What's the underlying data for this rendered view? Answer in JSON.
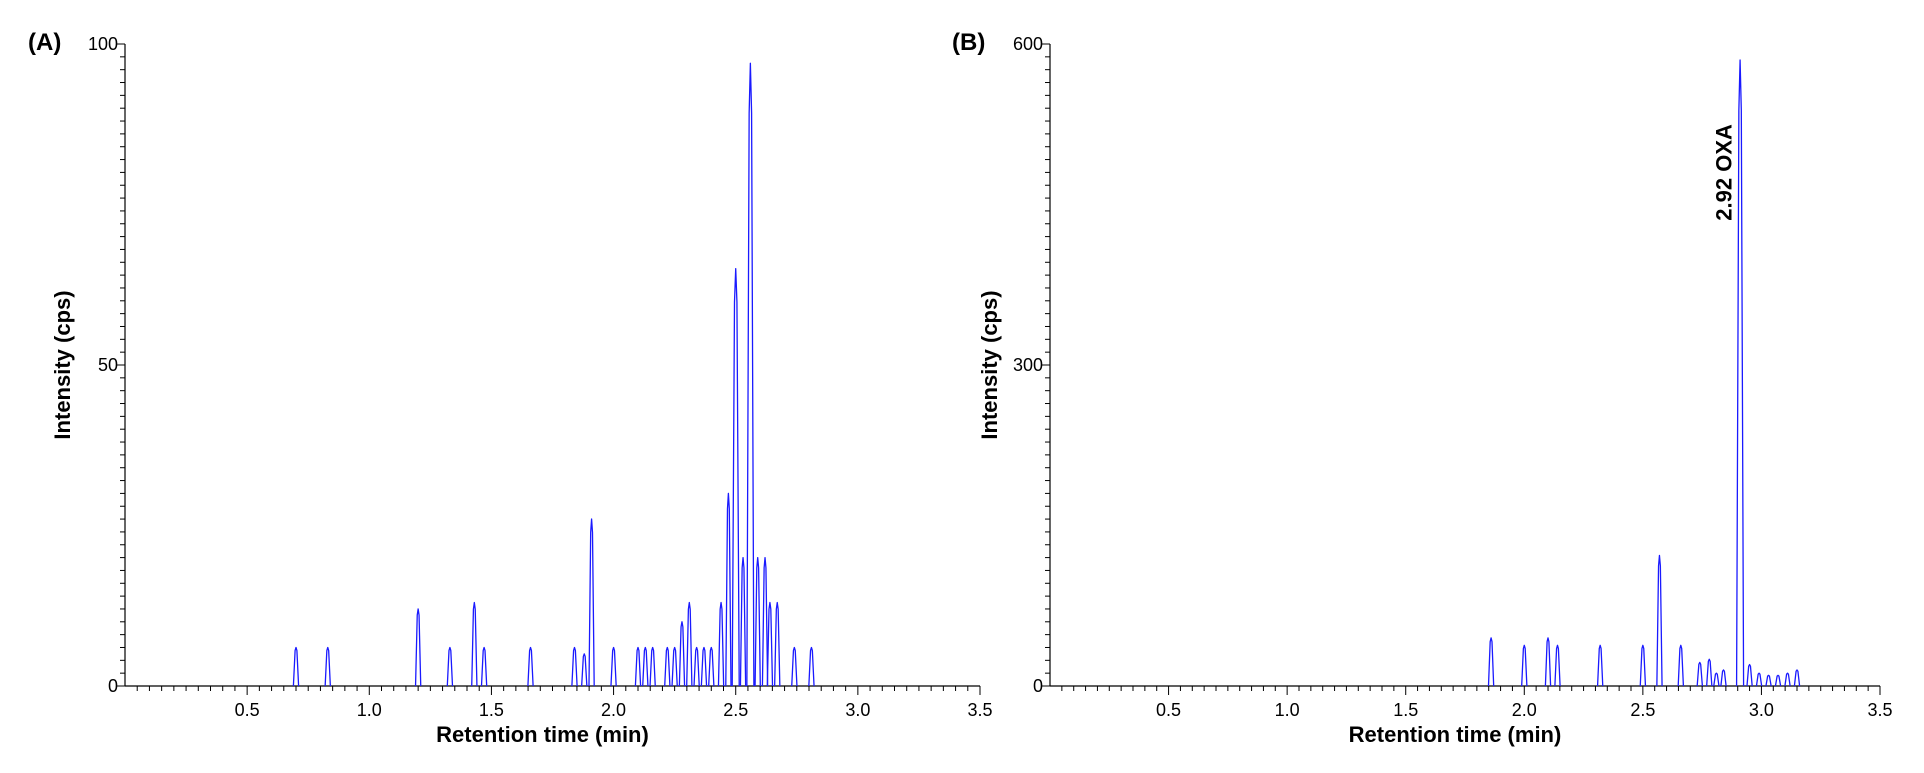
{
  "colors": {
    "trace": "#1a1aff",
    "axis": "#000000"
  },
  "chart_data": [
    {
      "type": "line",
      "panel_label": "(A)",
      "xlabel": "Retention time (min)",
      "ylabel": "Intensity (cps)",
      "xlim": [
        0,
        3.5
      ],
      "ylim": [
        0,
        100
      ],
      "x_ticks": [
        "0.5",
        "1.0",
        "1.5",
        "2.0",
        "2.5",
        "3.0",
        "3.5"
      ],
      "y_ticks": [
        "0",
        "50",
        "100"
      ],
      "grid": false,
      "annotations": [],
      "peaks": [
        {
          "x": 0.7,
          "y": 6
        },
        {
          "x": 0.83,
          "y": 6
        },
        {
          "x": 1.2,
          "y": 12
        },
        {
          "x": 1.33,
          "y": 6
        },
        {
          "x": 1.43,
          "y": 13
        },
        {
          "x": 1.47,
          "y": 6
        },
        {
          "x": 1.66,
          "y": 6
        },
        {
          "x": 1.84,
          "y": 6
        },
        {
          "x": 1.88,
          "y": 5
        },
        {
          "x": 1.91,
          "y": 26
        },
        {
          "x": 2.0,
          "y": 6
        },
        {
          "x": 2.1,
          "y": 6
        },
        {
          "x": 2.13,
          "y": 6
        },
        {
          "x": 2.16,
          "y": 6
        },
        {
          "x": 2.22,
          "y": 6
        },
        {
          "x": 2.25,
          "y": 6
        },
        {
          "x": 2.28,
          "y": 10
        },
        {
          "x": 2.31,
          "y": 13
        },
        {
          "x": 2.34,
          "y": 6
        },
        {
          "x": 2.37,
          "y": 6
        },
        {
          "x": 2.4,
          "y": 6
        },
        {
          "x": 2.44,
          "y": 13
        },
        {
          "x": 2.47,
          "y": 30
        },
        {
          "x": 2.5,
          "y": 65
        },
        {
          "x": 2.53,
          "y": 20
        },
        {
          "x": 2.56,
          "y": 97
        },
        {
          "x": 2.59,
          "y": 20
        },
        {
          "x": 2.62,
          "y": 20
        },
        {
          "x": 2.64,
          "y": 13
        },
        {
          "x": 2.67,
          "y": 13
        },
        {
          "x": 2.74,
          "y": 6
        },
        {
          "x": 2.81,
          "y": 6
        }
      ]
    },
    {
      "type": "line",
      "panel_label": "(B)",
      "xlabel": "Retention time (min)",
      "ylabel": "Intensity (cps)",
      "xlim": [
        0,
        3.5
      ],
      "ylim": [
        0,
        600
      ],
      "x_ticks": [
        "0.5",
        "1.0",
        "1.5",
        "2.0",
        "2.5",
        "3.0",
        "3.5"
      ],
      "y_ticks": [
        "0",
        "300",
        "600"
      ],
      "grid": false,
      "annotations": [
        {
          "text": "2.92  OXA",
          "x": 2.9,
          "y": 480
        }
      ],
      "peaks": [
        {
          "x": 1.86,
          "y": 45
        },
        {
          "x": 2.0,
          "y": 38
        },
        {
          "x": 2.1,
          "y": 45
        },
        {
          "x": 2.14,
          "y": 38
        },
        {
          "x": 2.32,
          "y": 38
        },
        {
          "x": 2.5,
          "y": 38
        },
        {
          "x": 2.57,
          "y": 122
        },
        {
          "x": 2.66,
          "y": 38
        },
        {
          "x": 2.74,
          "y": 22
        },
        {
          "x": 2.78,
          "y": 25
        },
        {
          "x": 2.81,
          "y": 12
        },
        {
          "x": 2.84,
          "y": 15
        },
        {
          "x": 2.91,
          "y": 585
        },
        {
          "x": 2.95,
          "y": 20
        },
        {
          "x": 2.99,
          "y": 12
        },
        {
          "x": 3.03,
          "y": 10
        },
        {
          "x": 3.07,
          "y": 10
        },
        {
          "x": 3.11,
          "y": 12
        },
        {
          "x": 3.15,
          "y": 15
        }
      ]
    }
  ]
}
